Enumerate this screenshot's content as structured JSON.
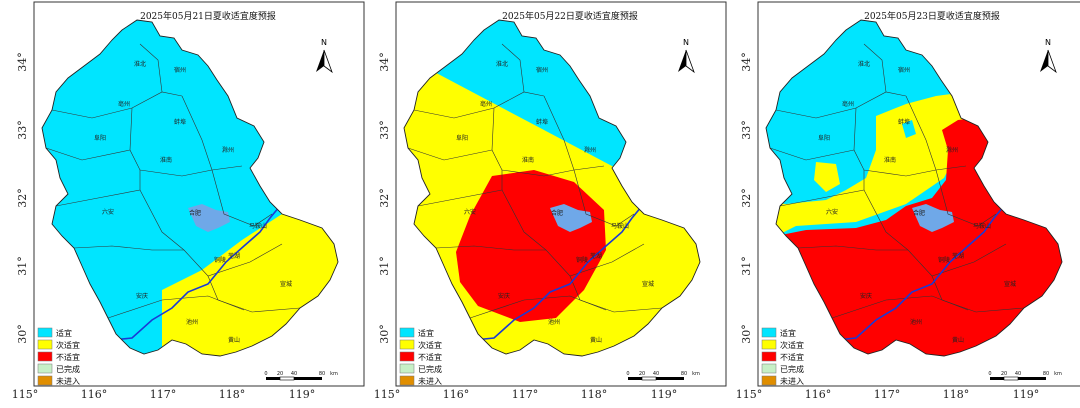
{
  "legend": [
    {
      "label": "适宜",
      "color": "#00e5ff"
    },
    {
      "label": "次适宜",
      "color": "#ffff00"
    },
    {
      "label": "不适宜",
      "color": "#ff0000"
    },
    {
      "label": "已完成",
      "color": "#c6f0c6"
    },
    {
      "label": "未进入",
      "color": "#e08e00"
    }
  ],
  "lat_labels": [
    "34°",
    "33°",
    "32°",
    "31°",
    "30°"
  ],
  "lon_labels": [
    "115°",
    "116°",
    "117°",
    "118°",
    "119°"
  ],
  "north_label": "N",
  "scale_labels": [
    "0",
    "20",
    "40",
    "80",
    "km"
  ],
  "panels": [
    {
      "title": "2025年05月21日夏收适宜度预报",
      "cities": [
        "淮北",
        "宿州",
        "亳州",
        "阜阳",
        "蚌埠",
        "淮南",
        "滁州",
        "合肥",
        "马鞍山",
        "六安",
        "芜湖",
        "铜陵",
        "安庆",
        "池州",
        "宣城",
        "黄山"
      ]
    },
    {
      "title": "2025年05月22日夏收适宜度预报",
      "cities": [
        "淮北",
        "宿州",
        "亳州",
        "阜阳",
        "蚌埠",
        "淮南",
        "滁州",
        "合肥",
        "马鞍山",
        "六安",
        "芜湖",
        "铜陵",
        "安庆",
        "池州",
        "宣城",
        "黄山"
      ]
    },
    {
      "title": "2025年05月23日夏收适宜度预报",
      "cities": [
        "淮北",
        "宿州",
        "亳州",
        "阜阳",
        "蚌埠",
        "淮南",
        "滁州",
        "合肥",
        "马鞍山",
        "六安",
        "芜湖",
        "铜陵",
        "安庆",
        "池州",
        "宣城",
        "黄山"
      ]
    }
  ]
}
